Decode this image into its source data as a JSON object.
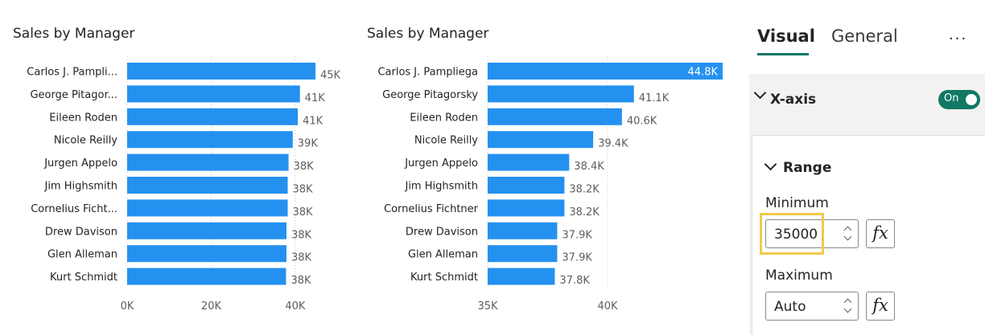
{
  "charts": [
    {
      "title": "Sales by Manager",
      "chart_data": {
        "type": "bar",
        "orientation": "horizontal",
        "categories": [
          "Carlos J. Pampli...",
          "George Pitagor...",
          "Eileen Roden",
          "Nicole Reilly",
          "Jurgen Appelo",
          "Jim Highsmith",
          "Cornelius Ficht...",
          "Drew Davison",
          "Glen Alleman",
          "Kurt Schmidt"
        ],
        "values": [
          44.8,
          41.1,
          40.6,
          39.4,
          38.4,
          38.2,
          38.2,
          37.9,
          37.9,
          37.8
        ],
        "data_labels": [
          "45K",
          "41K",
          "41K",
          "39K",
          "38K",
          "38K",
          "38K",
          "38K",
          "38K",
          "38K"
        ],
        "xlim": [
          0,
          44.8
        ],
        "ticks": [
          0,
          20,
          40
        ],
        "tick_labels": [
          "0K",
          "20K",
          "40K"
        ],
        "grid": true,
        "color": "#2491f0"
      }
    },
    {
      "title": "Sales by Manager",
      "chart_data": {
        "type": "bar",
        "orientation": "horizontal",
        "categories": [
          "Carlos J. Pampliega",
          "George Pitagorsky",
          "Eileen Roden",
          "Nicole Reilly",
          "Jurgen Appelo",
          "Jim Highsmith",
          "Cornelius Fichtner",
          "Drew Davison",
          "Glen Alleman",
          "Kurt Schmidt"
        ],
        "values": [
          44.8,
          41.1,
          40.6,
          39.4,
          38.4,
          38.2,
          38.2,
          37.9,
          37.9,
          37.8
        ],
        "data_labels": [
          "44.8K",
          "41.1K",
          "40.6K",
          "39.4K",
          "38.4K",
          "38.2K",
          "38.2K",
          "37.9K",
          "37.9K",
          "37.8K"
        ],
        "xlim": [
          35,
          44.8
        ],
        "ticks": [
          35,
          40
        ],
        "tick_labels": [
          "35K",
          "40K"
        ],
        "grid": true,
        "color": "#2491f0"
      }
    }
  ],
  "pane": {
    "tabs": {
      "visual": "Visual",
      "general": "General"
    },
    "more": "...",
    "xaxis": {
      "label": "X-axis",
      "toggle": "On"
    },
    "range": {
      "label": "Range",
      "minimum_label": "Minimum",
      "minimum_value": "35000",
      "maximum_label": "Maximum",
      "maximum_value": "Auto",
      "fx": "fx"
    },
    "colors": {
      "accent": "#117865",
      "highlight": "#f2c94c"
    }
  }
}
